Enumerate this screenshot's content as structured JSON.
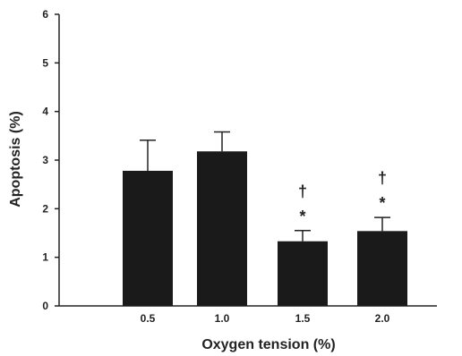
{
  "chart_data": {
    "type": "bar",
    "xlabel": "Oxygen tension (%)",
    "ylabel": "Apoptosis (%)",
    "ylim": [
      0,
      6
    ],
    "yticks": [
      "0",
      "1",
      "2",
      "3",
      "4",
      "5",
      "6"
    ],
    "categories": [
      "0.5",
      "1.0",
      "1.5",
      "2.0"
    ],
    "values": [
      2.78,
      3.18,
      1.33,
      1.54
    ],
    "errors": [
      0.63,
      0.4,
      0.22,
      0.28
    ],
    "annotations": [
      {
        "category": "1.5",
        "symbols": [
          "†",
          "*"
        ]
      },
      {
        "category": "2.0",
        "symbols": [
          "†",
          "*"
        ]
      }
    ],
    "bar_color": "#1a1a1a",
    "grid": false,
    "legend": "none"
  }
}
